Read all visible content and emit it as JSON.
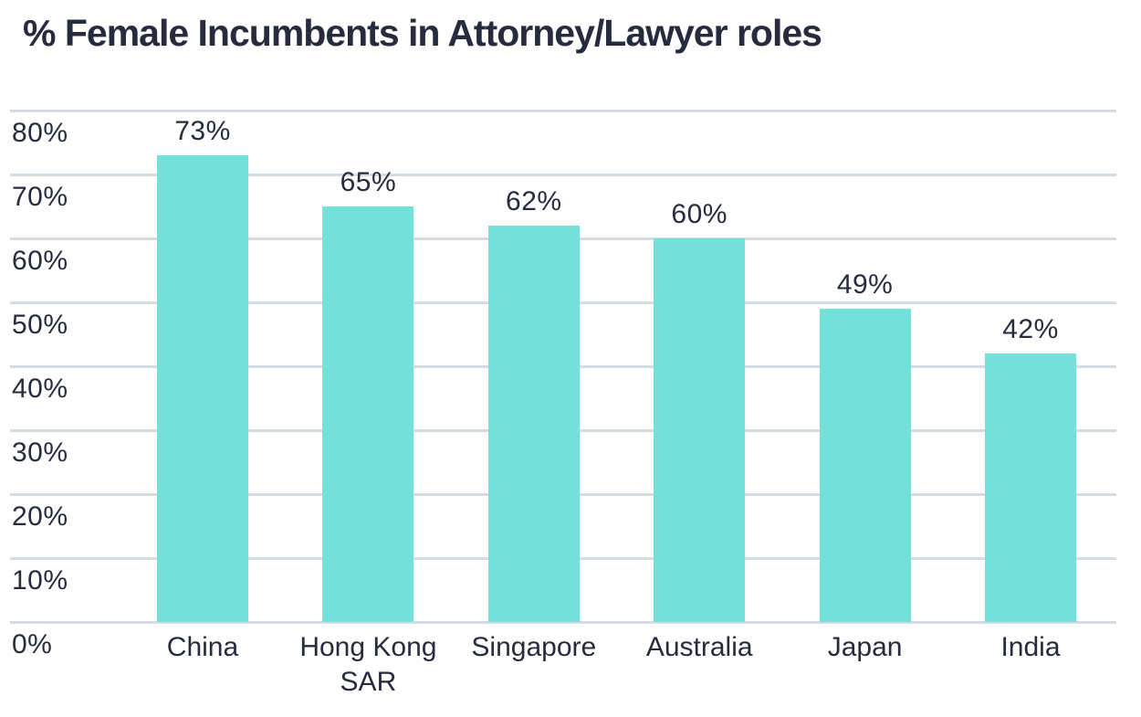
{
  "title": "% Female Incumbents in Attorney/Lawyer roles",
  "colors": {
    "bar": "#73e1d9",
    "grid": "#d3dde1",
    "text": "#262b3e",
    "background": "#ffffff"
  },
  "chart_data": {
    "type": "bar",
    "title": "% Female Incumbents in Attorney/Lawyer roles",
    "categories": [
      "China",
      "Hong Kong SAR",
      "Singapore",
      "Australia",
      "Japan",
      "India"
    ],
    "values": [
      73,
      65,
      62,
      60,
      49,
      42
    ],
    "data_labels": [
      "73%",
      "65%",
      "62%",
      "60%",
      "49%",
      "42%"
    ],
    "xlabel": "",
    "ylabel": "",
    "ylim": [
      0,
      80
    ],
    "ytick_interval": 10,
    "ytick_labels": [
      "0%",
      "10%",
      "20%",
      "30%",
      "40%",
      "50%",
      "60%",
      "70%",
      "80%"
    ],
    "grid": true,
    "legend": false,
    "bar_color": "#73e1d9",
    "data_label_position": "above-bar",
    "ytick_label_position": "below-gridline-left"
  }
}
